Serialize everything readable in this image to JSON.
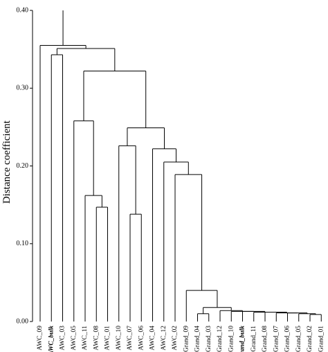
{
  "chart_data": {
    "type": "dendrogram",
    "y_label": "Distance  coefficient",
    "ylim": [
      0,
      0.4
    ],
    "yticks": [
      {
        "value": 0,
        "label": "0.00"
      },
      {
        "value": 0.1,
        "label": "0.10"
      },
      {
        "value": 0.2,
        "label": "0.20"
      },
      {
        "value": 0.3,
        "label": "0.30"
      },
      {
        "value": 0.4,
        "label": "0.40"
      }
    ],
    "color": "#000000",
    "tree": {
      "height": 0.355,
      "children": [
        {
          "label": "AWC_09"
        },
        {
          "height": 0.351,
          "children": [
            {
              "height": 0.343,
              "children": [
                {
                  "label": "AWC_bulk",
                  "bold": true
                },
                {
                  "label": "AWC_03"
                }
              ]
            },
            {
              "height": 0.322,
              "children": [
                {
                  "height": 0.258,
                  "children": [
                    {
                      "label": "AWC_05"
                    },
                    {
                      "height": 0.162,
                      "children": [
                        {
                          "label": "AWC_11"
                        },
                        {
                          "height": 0.147,
                          "children": [
                            {
                              "label": "AWC_08"
                            },
                            {
                              "label": "AWC_01"
                            }
                          ]
                        }
                      ]
                    }
                  ]
                },
                {
                  "height": 0.249,
                  "children": [
                    {
                      "height": 0.226,
                      "children": [
                        {
                          "label": "AWC_10"
                        },
                        {
                          "height": 0.138,
                          "children": [
                            {
                              "label": "AWC_07"
                            },
                            {
                              "label": "AWC_06"
                            }
                          ]
                        }
                      ]
                    },
                    {
                      "height": 0.222,
                      "children": [
                        {
                          "label": "AWC_04"
                        },
                        {
                          "height": 0.205,
                          "children": [
                            {
                              "label": "AWC_12"
                            },
                            {
                              "height": 0.189,
                              "children": [
                                {
                                  "label": "AWC_02"
                                },
                                {
                                  "height": 0.04,
                                  "children": [
                                    {
                                      "label": "Grand_09"
                                    },
                                    {
                                      "height": 0.018,
                                      "children": [
                                        {
                                          "height": 0.01,
                                          "children": [
                                            {
                                              "label": "Grand_04"
                                            },
                                            {
                                              "label": "Grand_03"
                                            }
                                          ]
                                        },
                                        {
                                          "height": 0.014,
                                          "children": [
                                            {
                                              "label": "Grand_12"
                                            },
                                            {
                                              "height": 0.013,
                                              "children": [
                                                {
                                                  "label": "Grand_10"
                                                },
                                                {
                                                  "height": 0.013,
                                                  "children": [
                                                    {
                                                      "label": "Grand_bulk",
                                                      "bold": true
                                                    },
                                                    {
                                                      "height": 0.012,
                                                      "children": [
                                                        {
                                                          "label": "Grand_11"
                                                        },
                                                        {
                                                          "height": 0.012,
                                                          "children": [
                                                            {
                                                              "label": "Grand_08"
                                                            },
                                                            {
                                                              "height": 0.011,
                                                              "children": [
                                                                {
                                                                  "label": "Grand_07"
                                                                },
                                                                {
                                                                  "height": 0.011,
                                                                  "children": [
                                                                    {
                                                                      "label": "Grand_06"
                                                                    },
                                                                    {
                                                                      "height": 0.01,
                                                                      "children": [
                                                                        {
                                                                          "label": "Grand_05"
                                                                        },
                                                                        {
                                                                          "height": 0.009,
                                                                          "children": [
                                                                            {
                                                                              "label": "Grand_02"
                                                                            },
                                                                            {
                                                                              "label": "Grand_01"
                                                                            }
                                                                          ]
                                                                        }
                                                                      ]
                                                                    }
                                                                  ]
                                                                }
                                                              ]
                                                            }
                                                          ]
                                                        }
                                                      ]
                                                    }
                                                  ]
                                                }
                                              ]
                                            }
                                          ]
                                        }
                                      ]
                                    }
                                  ]
                                }
                              ]
                            }
                          ]
                        }
                      ]
                    }
                  ]
                }
              ]
            }
          ]
        }
      ]
    }
  }
}
